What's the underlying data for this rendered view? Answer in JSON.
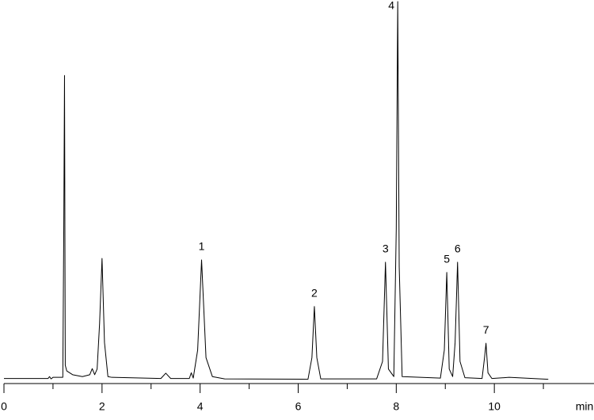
{
  "chart_data": {
    "type": "line",
    "x_label": "min",
    "xlim": [
      0,
      12
    ],
    "ylim": [
      0,
      100
    ],
    "xticks": [
      0,
      2,
      4,
      6,
      8,
      10
    ],
    "minor_xticks": [
      1,
      3,
      5,
      7,
      9,
      11
    ],
    "series": [
      {
        "color": "#000000",
        "x": [
          0,
          0.9,
          0.93,
          0.96,
          1.0,
          1.2,
          1.22,
          1.235,
          1.25,
          1.28,
          1.4,
          1.6,
          1.75,
          1.8,
          1.85,
          1.9,
          1.95,
          2.0,
          2.05,
          2.12,
          2.2,
          3.2,
          3.3,
          3.4,
          3.78,
          3.82,
          3.86,
          3.95,
          4.03,
          4.12,
          4.25,
          4.5,
          6.2,
          6.28,
          6.33,
          6.38,
          6.46,
          7.6,
          7.72,
          7.78,
          7.84,
          7.95,
          8.0,
          8.03,
          8.06,
          8.12,
          8.9,
          8.98,
          9.03,
          9.08,
          9.15,
          9.2,
          9.25,
          9.3,
          9.4,
          9.75,
          9.8,
          9.83,
          9.87,
          9.95,
          10.3,
          11.1
        ],
        "values": [
          0.5,
          0.5,
          1.0,
          0.4,
          0.8,
          0.8,
          40,
          80.5,
          4,
          2.5,
          1.5,
          1.0,
          1.5,
          3.1,
          1.5,
          3,
          15,
          32.2,
          10,
          1,
          0.8,
          0.5,
          1.9,
          0.5,
          0.5,
          2,
          0.6,
          8,
          31.8,
          6,
          1,
          0.4,
          0.3,
          6,
          19.5,
          6,
          0.4,
          0.4,
          5,
          31.2,
          3,
          1,
          40,
          100,
          30,
          1,
          0.6,
          8,
          28.5,
          3,
          1,
          10,
          31.2,
          5,
          0.7,
          0.5,
          6,
          9.8,
          2,
          0.5,
          0.8,
          0.3
        ]
      }
    ],
    "peak_labels": [
      {
        "text": "1",
        "x": 4.03,
        "y": 31.8
      },
      {
        "text": "2",
        "x": 6.33,
        "y": 19.5
      },
      {
        "text": "3",
        "x": 7.78,
        "y": 31.2
      },
      {
        "text": "4",
        "x": 8.03,
        "y": 100
      },
      {
        "text": "5",
        "x": 9.03,
        "y": 28.5
      },
      {
        "text": "6",
        "x": 9.25,
        "y": 31.2
      },
      {
        "text": "7",
        "x": 9.83,
        "y": 9.8
      }
    ]
  }
}
